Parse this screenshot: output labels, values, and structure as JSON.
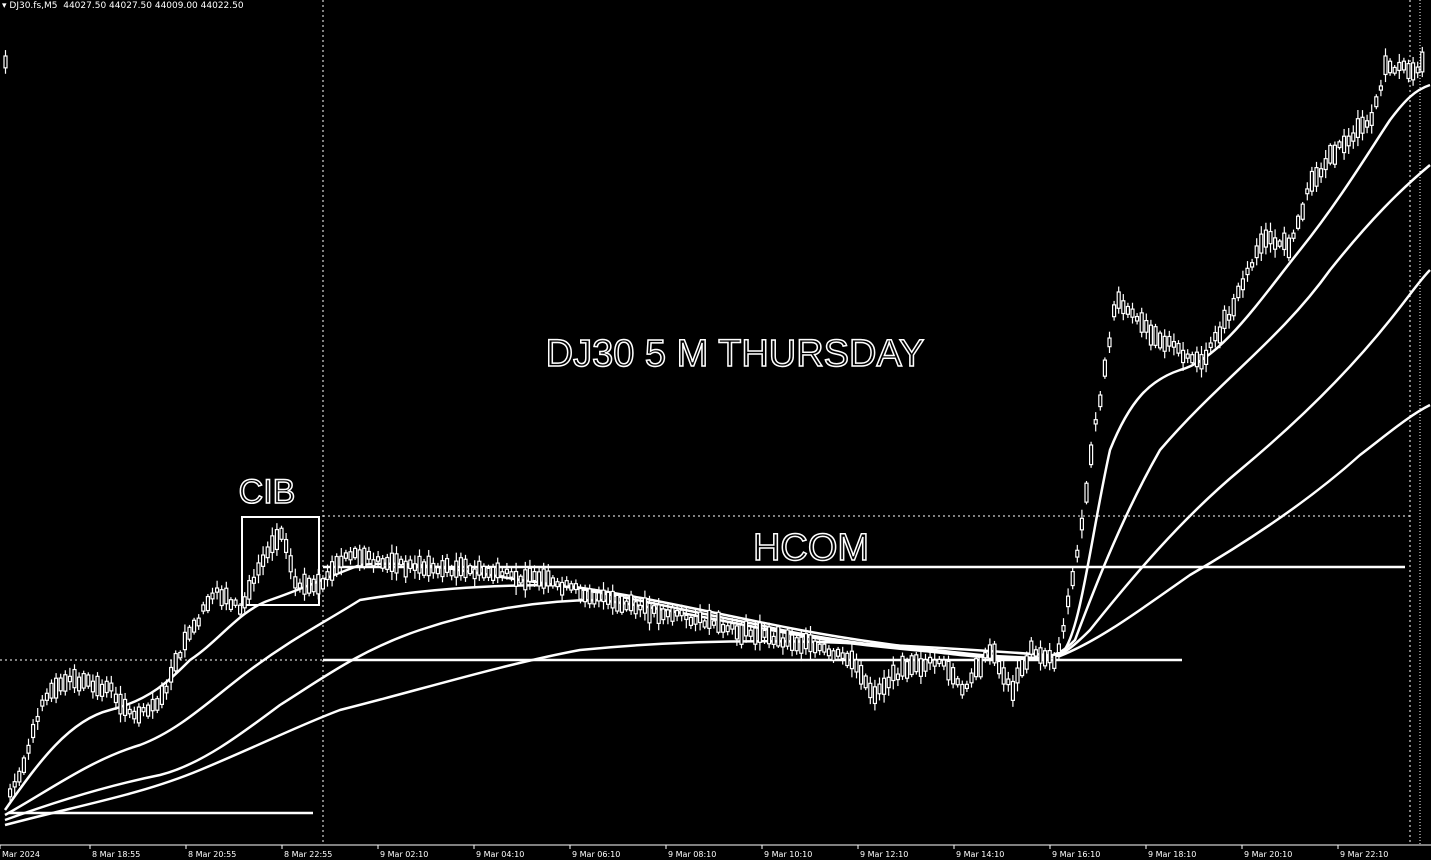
{
  "header": {
    "symbol": "DJ30.fs,M5",
    "quote": "44027.50 44027.50 44009.00 44022.50"
  },
  "chart_data": {
    "type": "candlestick",
    "title": "DJ30 5 M THURSDAY",
    "annotations": [
      "CIB",
      "HCOM"
    ],
    "x_ticks": [
      "Mar 2024",
      "8 Mar 18:55",
      "8 Mar 20:55",
      "8 Mar 22:55",
      "9 Mar 02:10",
      "9 Mar 04:10",
      "9 Mar 06:10",
      "9 Mar 08:10",
      "9 Mar 10:10",
      "9 Mar 12:10",
      "9 Mar 14:10",
      "9 Mar 16:10",
      "9 Mar 18:10",
      "9 Mar 20:10",
      "9 Mar 22:10"
    ],
    "grid": false,
    "colors": {
      "background": "#000000",
      "foreground": "#ffffff"
    }
  }
}
